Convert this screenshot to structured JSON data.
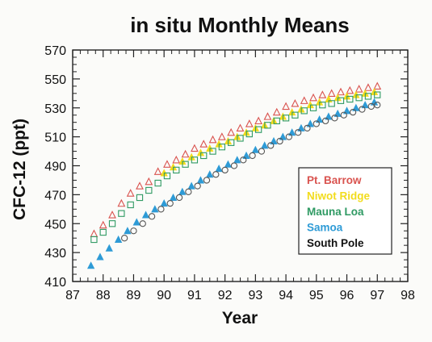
{
  "chart_data": {
    "type": "scatter",
    "title": "in situ Monthly Means",
    "xlabel": "Year",
    "ylabel": "CFC-12 (ppt)",
    "xlim": [
      87,
      98
    ],
    "ylim": [
      410,
      570
    ],
    "x_ticks": [
      "87",
      "88",
      "89",
      "90",
      "91",
      "92",
      "93",
      "94",
      "95",
      "96",
      "97",
      "98"
    ],
    "y_ticks": [
      "410",
      "430",
      "450",
      "470",
      "490",
      "510",
      "530",
      "550",
      "570"
    ],
    "grid": false,
    "legend_position": "lower-right",
    "series": [
      {
        "name": "Pt. Barrow",
        "color": "#d9534f",
        "marker": "triangle-open",
        "points": [
          [
            87.7,
            443
          ],
          [
            88.0,
            449
          ],
          [
            88.3,
            456
          ],
          [
            88.6,
            464
          ],
          [
            88.9,
            471
          ],
          [
            89.2,
            476
          ],
          [
            89.5,
            479
          ],
          [
            89.8,
            486
          ],
          [
            90.1,
            491
          ],
          [
            90.4,
            494
          ],
          [
            90.7,
            498
          ],
          [
            91.0,
            502
          ],
          [
            91.3,
            505
          ],
          [
            91.6,
            508
          ],
          [
            91.9,
            510
          ],
          [
            92.2,
            513
          ],
          [
            92.5,
            516
          ],
          [
            92.8,
            519
          ],
          [
            93.1,
            521
          ],
          [
            93.4,
            524
          ],
          [
            93.7,
            527
          ],
          [
            94.0,
            531
          ],
          [
            94.3,
            533
          ],
          [
            94.6,
            535
          ],
          [
            94.9,
            537
          ],
          [
            95.2,
            539
          ],
          [
            95.5,
            540
          ],
          [
            95.8,
            541
          ],
          [
            96.1,
            542
          ],
          [
            96.4,
            543
          ],
          [
            96.7,
            544
          ],
          [
            97.0,
            545
          ]
        ]
      },
      {
        "name": "Niwot Ridge",
        "color": "#f2dc1c",
        "marker": "triangle-filled",
        "points": [
          [
            90.0,
            485
          ],
          [
            90.3,
            489
          ],
          [
            90.6,
            493
          ],
          [
            90.9,
            496
          ],
          [
            91.2,
            499
          ],
          [
            91.5,
            502
          ],
          [
            91.8,
            505
          ],
          [
            92.1,
            507
          ],
          [
            92.4,
            510
          ],
          [
            92.7,
            513
          ],
          [
            93.0,
            516
          ],
          [
            93.3,
            518
          ],
          [
            93.6,
            521
          ],
          [
            93.9,
            524
          ],
          [
            94.2,
            527
          ],
          [
            94.5,
            529
          ],
          [
            94.8,
            532
          ],
          [
            95.1,
            534
          ],
          [
            95.4,
            536
          ],
          [
            95.7,
            537
          ],
          [
            96.0,
            538
          ],
          [
            96.3,
            539
          ],
          [
            96.6,
            540
          ],
          [
            96.9,
            541
          ]
        ]
      },
      {
        "name": "Mauna Loa",
        "color": "#2f9a63",
        "marker": "square-open",
        "points": [
          [
            87.7,
            439
          ],
          [
            88.0,
            444
          ],
          [
            88.3,
            450
          ],
          [
            88.6,
            457
          ],
          [
            88.9,
            463
          ],
          [
            89.2,
            468
          ],
          [
            89.5,
            473
          ],
          [
            89.8,
            478
          ],
          [
            90.1,
            483
          ],
          [
            90.4,
            487
          ],
          [
            90.7,
            491
          ],
          [
            91.0,
            494
          ],
          [
            91.3,
            497
          ],
          [
            91.6,
            500
          ],
          [
            91.9,
            503
          ],
          [
            92.2,
            506
          ],
          [
            92.5,
            509
          ],
          [
            92.8,
            512
          ],
          [
            93.1,
            515
          ],
          [
            93.4,
            518
          ],
          [
            93.7,
            521
          ],
          [
            94.0,
            523
          ],
          [
            94.3,
            525
          ],
          [
            94.6,
            528
          ],
          [
            94.9,
            530
          ],
          [
            95.2,
            532
          ],
          [
            95.5,
            533
          ],
          [
            95.8,
            535
          ],
          [
            96.1,
            536
          ],
          [
            96.4,
            537
          ],
          [
            96.7,
            538
          ],
          [
            97.0,
            539
          ]
        ]
      },
      {
        "name": "Samoa",
        "color": "#2e9bd6",
        "marker": "triangle-filled",
        "points": [
          [
            87.6,
            421
          ],
          [
            87.9,
            427
          ],
          [
            88.2,
            433
          ],
          [
            88.5,
            439
          ],
          [
            88.8,
            445
          ],
          [
            89.1,
            451
          ],
          [
            89.4,
            456
          ],
          [
            89.7,
            460
          ],
          [
            90.0,
            464
          ],
          [
            90.3,
            468
          ],
          [
            90.6,
            472
          ],
          [
            90.9,
            476
          ],
          [
            91.2,
            480
          ],
          [
            91.5,
            484
          ],
          [
            91.8,
            488
          ],
          [
            92.1,
            491
          ],
          [
            92.4,
            494
          ],
          [
            92.7,
            497
          ],
          [
            93.0,
            501
          ],
          [
            93.3,
            504
          ],
          [
            93.6,
            507
          ],
          [
            93.9,
            510
          ],
          [
            94.2,
            513
          ],
          [
            94.5,
            516
          ],
          [
            94.8,
            519
          ],
          [
            95.1,
            522
          ],
          [
            95.4,
            524
          ],
          [
            95.7,
            526
          ],
          [
            96.0,
            528
          ],
          [
            96.3,
            530
          ],
          [
            96.6,
            532
          ],
          [
            96.9,
            534
          ]
        ]
      },
      {
        "name": "South Pole",
        "color": "#555555",
        "marker": "circle-open",
        "points": [
          [
            88.7,
            440
          ],
          [
            89.0,
            445
          ],
          [
            89.3,
            450
          ],
          [
            89.6,
            455
          ],
          [
            89.9,
            460
          ],
          [
            90.2,
            464
          ],
          [
            90.5,
            468
          ],
          [
            90.8,
            472
          ],
          [
            91.1,
            476
          ],
          [
            91.4,
            480
          ],
          [
            91.7,
            484
          ],
          [
            92.0,
            487
          ],
          [
            92.3,
            490
          ],
          [
            92.6,
            494
          ],
          [
            92.9,
            497
          ],
          [
            93.2,
            500
          ],
          [
            93.5,
            504
          ],
          [
            93.8,
            507
          ],
          [
            94.1,
            510
          ],
          [
            94.4,
            513
          ],
          [
            94.7,
            516
          ],
          [
            95.0,
            519
          ],
          [
            95.3,
            521
          ],
          [
            95.6,
            523
          ],
          [
            95.9,
            525
          ],
          [
            96.2,
            527
          ],
          [
            96.5,
            529
          ],
          [
            96.8,
            531
          ],
          [
            97.0,
            532
          ]
        ]
      }
    ]
  }
}
